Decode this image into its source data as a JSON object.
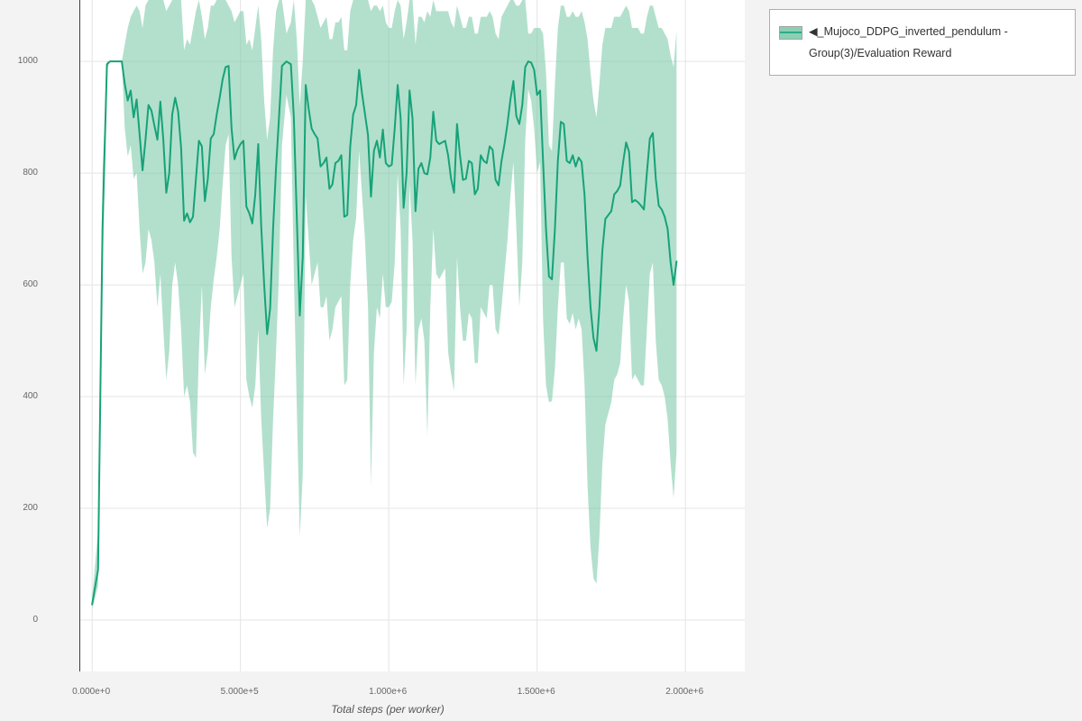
{
  "legend": {
    "marker_icon": "◀",
    "label": "_Mujoco_DDPG_inverted_pendulum - Group(3)/Evaluation Reward"
  },
  "colors": {
    "line": "#17a278",
    "band": "#7fcbab",
    "band_opacity": 0.6,
    "grid": "#e4e4e4",
    "axis_spine": "#3c3c3c",
    "tick_text": "#666666",
    "page_bg": "#f3f3f3",
    "plot_bg": "#ffffff"
  },
  "chart_data": {
    "type": "line",
    "title": "",
    "xlabel": "Total steps (per worker)",
    "ylabel": "",
    "x_unit": "1e6 steps",
    "xlim": [
      -0.04,
      2.2
    ],
    "ylim": [
      -92,
      1110
    ],
    "grid": true,
    "legend_position": "top-right",
    "x_ticks": {
      "values": [
        0,
        0.5,
        1.0,
        1.5,
        2.0
      ],
      "labels": [
        "0.000e+0",
        "5.000e+5",
        "1.000e+6",
        "1.500e+6",
        "2.000e+6"
      ]
    },
    "y_ticks": {
      "values": [
        0,
        200,
        400,
        600,
        800,
        1000
      ],
      "labels": [
        "0",
        "200",
        "400",
        "600",
        "800",
        "1000"
      ]
    },
    "series": [
      {
        "name": "◀_Mujoco_DDPG_inverted_pendulum - Group(3)/Evaluation Reward",
        "color": "#17a278",
        "band_color": "#7fcbab",
        "x": [
          0.0,
          0.02,
          0.035,
          0.05,
          0.06,
          0.1,
          0.11,
          0.12,
          0.13,
          0.14,
          0.15,
          0.16,
          0.17,
          0.18,
          0.19,
          0.2,
          0.21,
          0.22,
          0.23,
          0.24,
          0.25,
          0.26,
          0.27,
          0.28,
          0.29,
          0.3,
          0.31,
          0.32,
          0.33,
          0.34,
          0.35,
          0.36,
          0.37,
          0.38,
          0.39,
          0.4,
          0.41,
          0.42,
          0.43,
          0.44,
          0.45,
          0.46,
          0.47,
          0.48,
          0.49,
          0.5,
          0.51,
          0.52,
          0.53,
          0.54,
          0.55,
          0.56,
          0.57,
          0.58,
          0.59,
          0.6,
          0.61,
          0.62,
          0.63,
          0.64,
          0.655,
          0.67,
          0.68,
          0.69,
          0.7,
          0.71,
          0.72,
          0.73,
          0.74,
          0.75,
          0.76,
          0.77,
          0.78,
          0.79,
          0.8,
          0.81,
          0.82,
          0.83,
          0.84,
          0.85,
          0.86,
          0.87,
          0.88,
          0.89,
          0.9,
          0.91,
          0.92,
          0.93,
          0.94,
          0.95,
          0.96,
          0.97,
          0.98,
          0.99,
          1.0,
          1.01,
          1.02,
          1.03,
          1.04,
          1.05,
          1.06,
          1.07,
          1.08,
          1.09,
          1.1,
          1.11,
          1.12,
          1.13,
          1.14,
          1.15,
          1.16,
          1.17,
          1.18,
          1.19,
          1.2,
          1.21,
          1.22,
          1.23,
          1.24,
          1.25,
          1.26,
          1.27,
          1.28,
          1.29,
          1.3,
          1.31,
          1.32,
          1.33,
          1.34,
          1.35,
          1.36,
          1.37,
          1.38,
          1.39,
          1.4,
          1.41,
          1.42,
          1.43,
          1.44,
          1.45,
          1.46,
          1.47,
          1.48,
          1.49,
          1.5,
          1.51,
          1.52,
          1.53,
          1.54,
          1.55,
          1.56,
          1.57,
          1.58,
          1.59,
          1.6,
          1.61,
          1.62,
          1.63,
          1.64,
          1.65,
          1.66,
          1.67,
          1.68,
          1.69,
          1.7,
          1.71,
          1.72,
          1.73,
          1.74,
          1.75,
          1.76,
          1.77,
          1.78,
          1.79,
          1.8,
          1.81,
          1.82,
          1.83,
          1.84,
          1.85,
          1.86,
          1.87,
          1.88,
          1.89,
          1.9,
          1.91,
          1.92,
          1.93,
          1.94,
          1.95,
          1.96,
          1.97
        ],
        "mean": [
          28,
          90,
          700,
          995,
          1000,
          1000,
          960,
          930,
          948,
          900,
          932,
          870,
          805,
          860,
          922,
          912,
          885,
          860,
          928,
          860,
          765,
          800,
          905,
          935,
          910,
          845,
          715,
          728,
          712,
          722,
          790,
          858,
          848,
          750,
          790,
          862,
          870,
          905,
          935,
          968,
          990,
          992,
          880,
          825,
          842,
          852,
          858,
          740,
          728,
          710,
          762,
          852,
          705,
          600,
          512,
          558,
          700,
          810,
          900,
          992,
          1000,
          995,
          900,
          720,
          545,
          650,
          958,
          915,
          880,
          870,
          862,
          812,
          818,
          828,
          772,
          780,
          818,
          822,
          832,
          722,
          725,
          848,
          905,
          922,
          985,
          942,
          905,
          868,
          758,
          840,
          858,
          828,
          878,
          818,
          812,
          815,
          880,
          958,
          898,
          738,
          800,
          948,
          898,
          732,
          808,
          818,
          800,
          798,
          828,
          910,
          858,
          852,
          855,
          858,
          832,
          790,
          765,
          888,
          832,
          788,
          790,
          822,
          818,
          762,
          772,
          832,
          822,
          818,
          848,
          842,
          788,
          778,
          822,
          852,
          888,
          932,
          965,
          902,
          888,
          922,
          990,
          1000,
          998,
          985,
          940,
          948,
          822,
          700,
          615,
          610,
          700,
          822,
          892,
          888,
          822,
          818,
          832,
          812,
          828,
          820,
          760,
          650,
          560,
          505,
          482,
          560,
          662,
          718,
          725,
          732,
          762,
          768,
          778,
          820,
          855,
          838,
          748,
          752,
          748,
          742,
          735,
          800,
          862,
          872,
          790,
          742,
          735,
          722,
          700,
          640,
          600,
          642
        ],
        "band_low": [
          20,
          60,
          600,
          985,
          1000,
          1000,
          880,
          830,
          850,
          790,
          800,
          700,
          620,
          640,
          700,
          680,
          640,
          560,
          620,
          520,
          430,
          480,
          600,
          640,
          600,
          520,
          400,
          420,
          390,
          300,
          290,
          480,
          600,
          440,
          480,
          560,
          610,
          650,
          700,
          780,
          850,
          870,
          650,
          560,
          580,
          600,
          620,
          430,
          400,
          380,
          420,
          520,
          360,
          260,
          165,
          200,
          360,
          480,
          620,
          850,
          940,
          900,
          620,
          380,
          150,
          260,
          760,
          680,
          600,
          620,
          640,
          560,
          560,
          580,
          500,
          520,
          560,
          570,
          580,
          420,
          430,
          600,
          680,
          720,
          840,
          760,
          680,
          560,
          240,
          480,
          560,
          540,
          620,
          560,
          560,
          570,
          640,
          800,
          700,
          420,
          520,
          780,
          680,
          420,
          520,
          540,
          500,
          330,
          560,
          700,
          620,
          610,
          620,
          630,
          480,
          440,
          410,
          650,
          560,
          500,
          500,
          550,
          540,
          460,
          460,
          560,
          550,
          540,
          600,
          600,
          520,
          510,
          560,
          620,
          680,
          760,
          820,
          700,
          560,
          640,
          860,
          950,
          930,
          880,
          800,
          820,
          540,
          420,
          390,
          392,
          450,
          560,
          640,
          640,
          540,
          530,
          550,
          520,
          540,
          520,
          420,
          240,
          130,
          75,
          65,
          150,
          280,
          350,
          370,
          390,
          430,
          440,
          460,
          540,
          600,
          570,
          430,
          440,
          430,
          420,
          420,
          520,
          620,
          640,
          500,
          430,
          420,
          400,
          360,
          280,
          218,
          300
        ],
        "band_high": [
          40,
          160,
          800,
          1000,
          1000,
          1000,
          1030,
          1060,
          1080,
          1090,
          1100,
          1090,
          1060,
          1100,
          1110,
          1110,
          1110,
          1110,
          1110,
          1110,
          1090,
          1100,
          1110,
          1110,
          1110,
          1110,
          1020,
          1040,
          1030,
          1060,
          1090,
          1110,
          1080,
          1040,
          1060,
          1100,
          1100,
          1110,
          1110,
          1110,
          1110,
          1100,
          1090,
          1070,
          1080,
          1090,
          1090,
          1030,
          1040,
          1020,
          1060,
          1100,
          1040,
          930,
          860,
          900,
          1020,
          1090,
          1110,
          1110,
          1050,
          1070,
          1110,
          1040,
          920,
          1000,
          1110,
          1110,
          1110,
          1100,
          1080,
          1060,
          1070,
          1080,
          1040,
          1040,
          1070,
          1070,
          1080,
          1020,
          1020,
          1090,
          1110,
          1110,
          1110,
          1110,
          1110,
          1110,
          1090,
          1100,
          1100,
          1090,
          1100,
          1070,
          1060,
          1060,
          1090,
          1110,
          1100,
          1040,
          1070,
          1110,
          1110,
          1030,
          1080,
          1080,
          1070,
          1090,
          1080,
          1110,
          1090,
          1090,
          1090,
          1090,
          1090,
          1070,
          1060,
          1100,
          1080,
          1060,
          1060,
          1080,
          1080,
          1050,
          1050,
          1080,
          1080,
          1080,
          1090,
          1080,
          1050,
          1040,
          1080,
          1090,
          1100,
          1110,
          1110,
          1100,
          1100,
          1110,
          1110,
          1050,
          1050,
          1060,
          1060,
          1060,
          1050,
          980,
          850,
          840,
          960,
          1060,
          1100,
          1100,
          1080,
          1080,
          1090,
          1080,
          1080,
          1090,
          1070,
          1040,
          980,
          930,
          900,
          960,
          1030,
          1060,
          1060,
          1060,
          1080,
          1080,
          1080,
          1090,
          1100,
          1090,
          1060,
          1060,
          1060,
          1050,
          1050,
          1080,
          1100,
          1100,
          1080,
          1060,
          1060,
          1050,
          1040,
          1010,
          990,
          1055
        ]
      }
    ]
  }
}
